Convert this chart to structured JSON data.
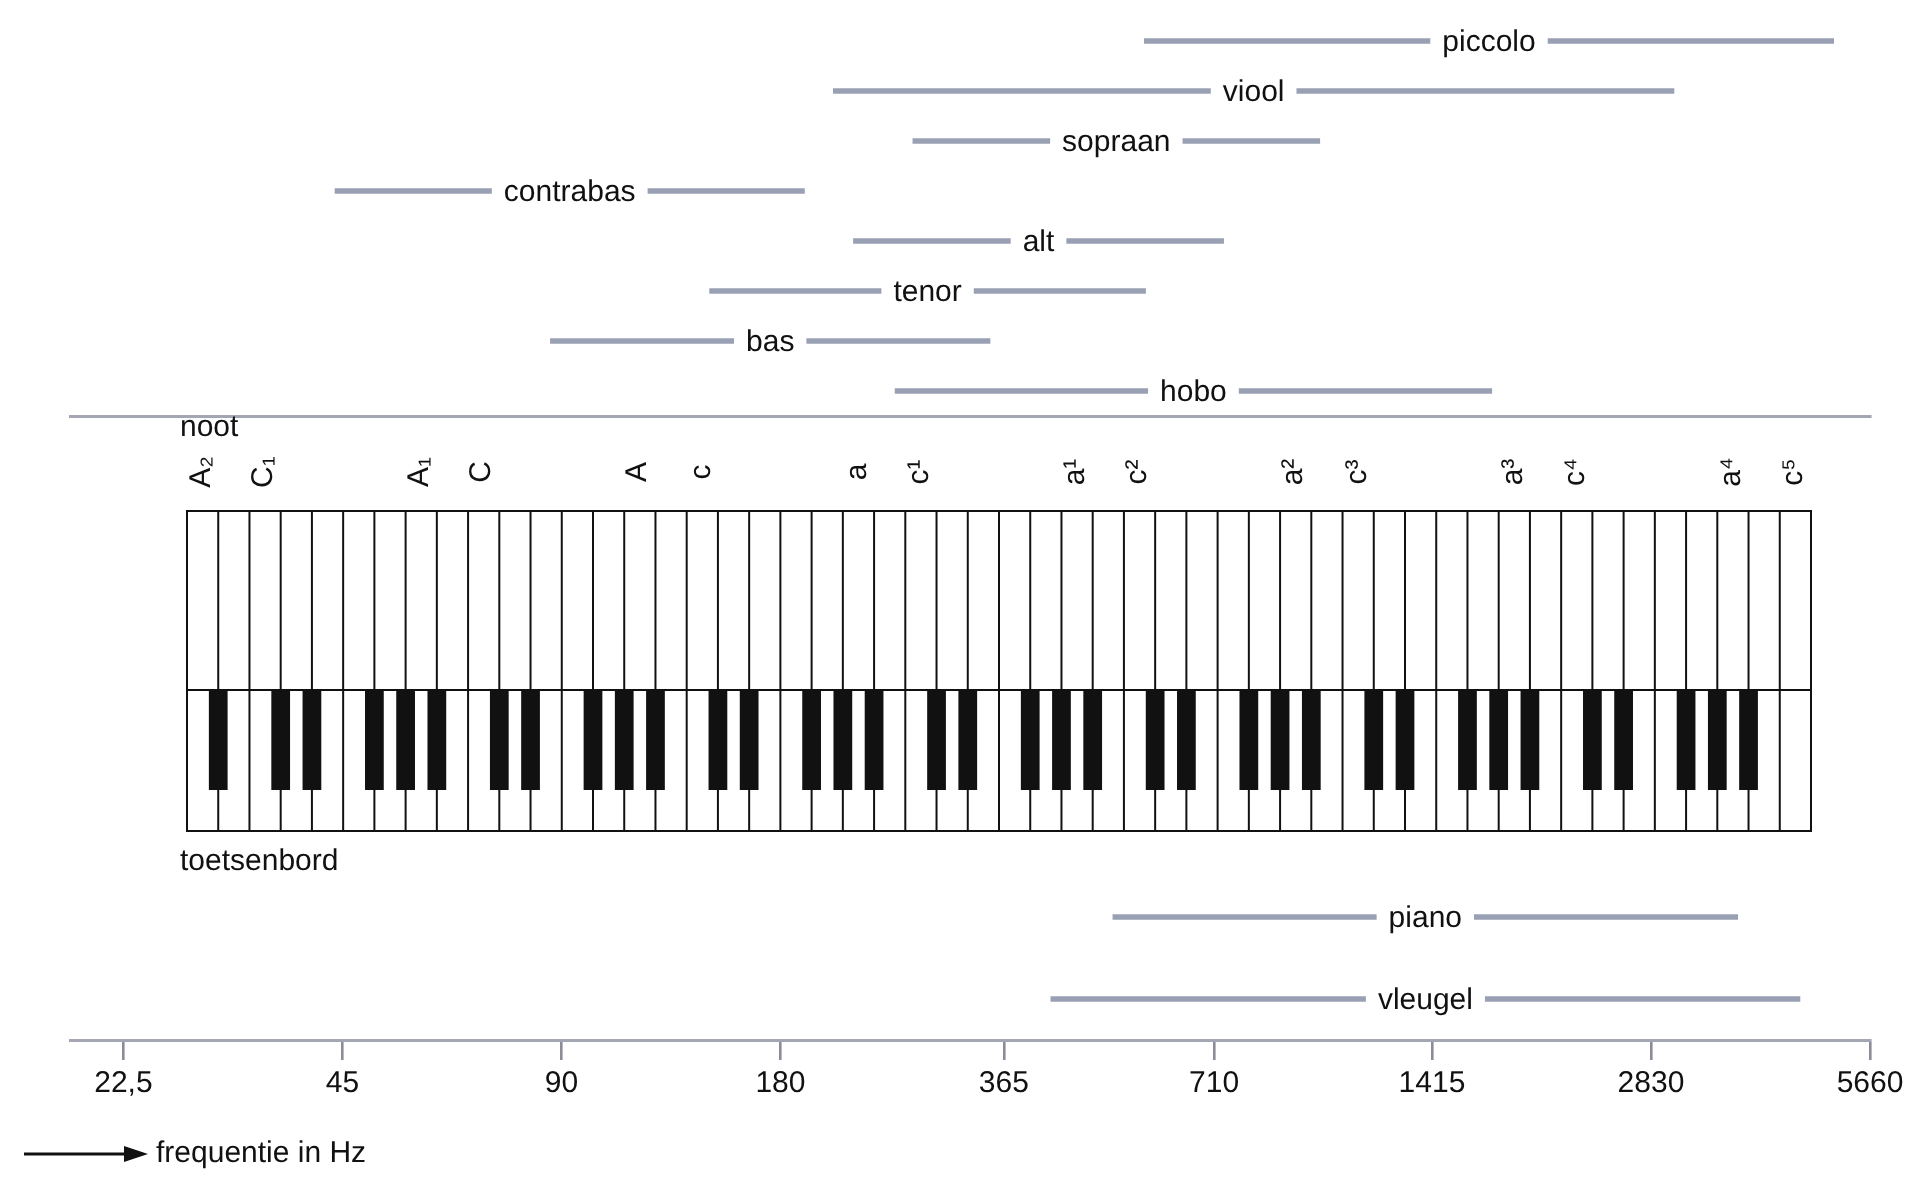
{
  "chart_data": [
    {
      "type": "bar",
      "orientation": "horizontal",
      "log": "x",
      "categories": [
        "piccolo",
        "viool",
        "sopraan",
        "contrabas",
        "alt",
        "tenor",
        "bas",
        "hobo"
      ],
      "base": [
        570,
        213,
        274,
        44,
        227,
        144,
        87,
        259
      ],
      "values": [
        4470,
        2827,
        717,
        150,
        504,
        427,
        262,
        1449
      ],
      "color": "#9aa0b4",
      "xlim": [
        19,
        5660
      ],
      "tick_labels": false,
      "grid": false,
      "legend": false
    },
    {
      "type": "bar",
      "orientation": "horizontal",
      "log": "x",
      "categories": [
        "piano",
        "vleugel"
      ],
      "base": [
        516,
        424
      ],
      "values": [
        3204,
        4106
      ],
      "color": "#9aa0b4",
      "xlim": [
        19,
        5660
      ],
      "xticks": [
        {
          "value": 22.5,
          "label": "22,5"
        },
        45,
        90,
        180,
        365,
        710,
        1415,
        2830,
        5660
      ],
      "xlabel": "frequentie in Hz",
      "tick_labels": "x",
      "grid": false,
      "legend": false,
      "annotations": [
        "noot",
        "toetsenbord",
        "A₂",
        "C₁",
        "A₁",
        "C",
        "A",
        "c",
        "a",
        "c¹",
        "a¹",
        "c²",
        "a²",
        "c³",
        "a³",
        "c⁴",
        "a⁴",
        "c⁵"
      ]
    }
  ]
}
